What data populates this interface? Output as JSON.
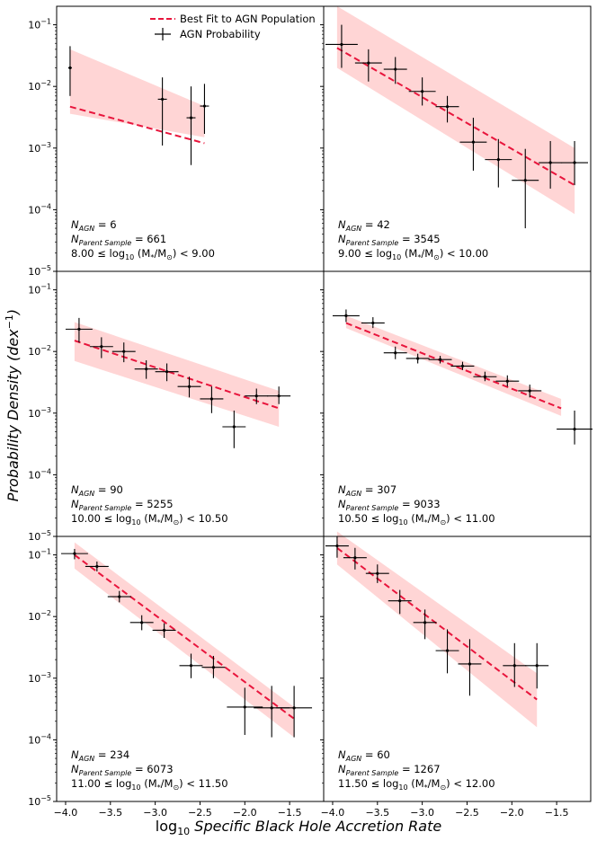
{
  "colors": {
    "fit": "#e8153c",
    "band": "#ffb3b3",
    "points": "#000000",
    "frame": "#000000"
  },
  "labels": {
    "xlabel_prefix": "log",
    "xlabel_sub": "10",
    "xlabel_rest": "Specific Black Hole Accretion Rate",
    "ylabel": "Probability Density (dex",
    "ylabel_exp": "−1",
    "ylabel_close": ")"
  },
  "legend": {
    "fit": "Best Fit to AGN Population",
    "points": "AGN Probability"
  },
  "chart_data": [
    {
      "type": "scatter",
      "xlim": [
        -4.1,
        -1.12
      ],
      "ylim_exp": [
        -5,
        -0.7
      ],
      "n_agn": "6",
      "n_parent": "661",
      "mass_lo": "8.00",
      "mass_hi": "9.00",
      "points": [
        {
          "x": -3.95,
          "y": 0.02,
          "yerr": [
            0.007,
            0.045
          ],
          "xerr": 0.02
        },
        {
          "x": -2.92,
          "y": 0.0062,
          "yerr": [
            0.0011,
            0.014
          ],
          "xerr": 0.05
        },
        {
          "x": -2.6,
          "y": 0.0031,
          "yerr": [
            0.00053,
            0.01
          ],
          "xerr": 0.05
        },
        {
          "x": -2.45,
          "y": 0.0048,
          "yerr": [
            0.0017,
            0.011
          ],
          "xerr": 0.05
        }
      ],
      "fit": {
        "x": [
          -3.95,
          -2.45
        ],
        "y": [
          0.0047,
          0.0012
        ]
      },
      "band": {
        "x": [
          -3.95,
          -2.45
        ],
        "lo": [
          0.0036,
          0.0015
        ],
        "hi": [
          0.04,
          0.0048
        ]
      }
    },
    {
      "type": "scatter",
      "xlim": [
        -4.1,
        -1.12
      ],
      "ylim_exp": [
        -5,
        -0.7
      ],
      "n_agn": "42",
      "n_parent": "3545",
      "mass_lo": "9.00",
      "mass_hi": "10.00",
      "points": [
        {
          "x": -3.9,
          "y": 0.048,
          "yerr": [
            0.02,
            0.1
          ],
          "xerr": 0.18
        },
        {
          "x": -3.6,
          "y": 0.024,
          "yerr": [
            0.012,
            0.04
          ],
          "xerr": 0.15
        },
        {
          "x": -3.3,
          "y": 0.019,
          "yerr": [
            0.011,
            0.03
          ],
          "xerr": 0.13
        },
        {
          "x": -3.0,
          "y": 0.0083,
          "yerr": [
            0.0049,
            0.014
          ],
          "xerr": 0.15
        },
        {
          "x": -2.72,
          "y": 0.0047,
          "yerr": [
            0.0026,
            0.007
          ],
          "xerr": 0.13
        },
        {
          "x": -2.43,
          "y": 0.00125,
          "yerr": [
            0.00043,
            0.0031
          ],
          "xerr": 0.15
        },
        {
          "x": -2.15,
          "y": 0.00065,
          "yerr": [
            0.00023,
            0.0014
          ],
          "xerr": 0.15
        },
        {
          "x": -1.85,
          "y": 0.0003,
          "yerr": [
            5e-05,
            0.00097
          ],
          "xerr": 0.15
        },
        {
          "x": -1.57,
          "y": 0.00058,
          "yerr": [
            0.00022,
            0.0013
          ],
          "xerr": 0.13
        },
        {
          "x": -1.3,
          "y": 0.00058,
          "yerr": [
            0.00025,
            0.0013
          ],
          "xerr": 0.15
        }
      ],
      "fit": {
        "x": [
          -3.95,
          -1.3
        ],
        "y": [
          0.042,
          0.00025
        ]
      },
      "band": {
        "x": [
          -3.95,
          -1.3
        ],
        "lo": [
          0.02,
          8.5e-05
        ],
        "hi": [
          0.2,
          0.001
        ]
      }
    },
    {
      "type": "scatter",
      "xlim": [
        -4.1,
        -1.12
      ],
      "ylim_exp": [
        -5,
        -0.7
      ],
      "n_agn": "90",
      "n_parent": "5255",
      "mass_lo": "10.00",
      "mass_hi": "10.50",
      "points": [
        {
          "x": -3.85,
          "y": 0.023,
          "yerr": [
            0.014,
            0.035
          ],
          "xerr": 0.15
        },
        {
          "x": -3.6,
          "y": 0.012,
          "yerr": [
            0.0078,
            0.017
          ],
          "xerr": 0.13
        },
        {
          "x": -3.35,
          "y": 0.01,
          "yerr": [
            0.0067,
            0.014
          ],
          "xerr": 0.13
        },
        {
          "x": -3.1,
          "y": 0.0052,
          "yerr": [
            0.0036,
            0.0072
          ],
          "xerr": 0.13
        },
        {
          "x": -2.87,
          "y": 0.0047,
          "yerr": [
            0.0033,
            0.0064
          ],
          "xerr": 0.13
        },
        {
          "x": -2.62,
          "y": 0.0027,
          "yerr": [
            0.0018,
            0.0039
          ],
          "xerr": 0.13
        },
        {
          "x": -2.37,
          "y": 0.0017,
          "yerr": [
            0.001,
            0.0027
          ],
          "xerr": 0.13
        },
        {
          "x": -2.12,
          "y": 0.0006,
          "yerr": [
            0.00027,
            0.0011
          ],
          "xerr": 0.13
        },
        {
          "x": -1.87,
          "y": 0.0019,
          "yerr": [
            0.0014,
            0.0025
          ],
          "xerr": 0.13
        },
        {
          "x": -1.62,
          "y": 0.0019,
          "yerr": [
            0.0014,
            0.0027
          ],
          "xerr": 0.13
        }
      ],
      "fit": {
        "x": [
          -3.9,
          -1.62
        ],
        "y": [
          0.015,
          0.0012
        ]
      },
      "band": {
        "x": [
          -3.9,
          -1.62
        ],
        "lo": [
          0.007,
          0.0006
        ],
        "hi": [
          0.03,
          0.0023
        ]
      }
    },
    {
      "type": "scatter",
      "xlim": [
        -4.1,
        -1.12
      ],
      "ylim_exp": [
        -5,
        -0.7
      ],
      "n_agn": "307",
      "n_parent": "9033",
      "mass_lo": "10.50",
      "mass_hi": "11.00",
      "points": [
        {
          "x": -3.85,
          "y": 0.038,
          "yerr": [
            0.03,
            0.048
          ],
          "xerr": 0.15
        },
        {
          "x": -3.55,
          "y": 0.029,
          "yerr": [
            0.024,
            0.036
          ],
          "xerr": 0.13
        },
        {
          "x": -3.3,
          "y": 0.0095,
          "yerr": [
            0.0075,
            0.012
          ],
          "xerr": 0.13
        },
        {
          "x": -3.05,
          "y": 0.0077,
          "yerr": [
            0.0064,
            0.0092
          ],
          "xerr": 0.13
        },
        {
          "x": -2.8,
          "y": 0.0074,
          "yerr": [
            0.0064,
            0.0085
          ],
          "xerr": 0.13
        },
        {
          "x": -2.55,
          "y": 0.0058,
          "yerr": [
            0.005,
            0.0068
          ],
          "xerr": 0.13
        },
        {
          "x": -2.3,
          "y": 0.0039,
          "yerr": [
            0.0033,
            0.0047
          ],
          "xerr": 0.13
        },
        {
          "x": -2.05,
          "y": 0.0033,
          "yerr": [
            0.0027,
            0.0041
          ],
          "xerr": 0.13
        },
        {
          "x": -1.8,
          "y": 0.0023,
          "yerr": [
            0.0018,
            0.0029
          ],
          "xerr": 0.13
        },
        {
          "x": -1.3,
          "y": 0.00055,
          "yerr": [
            0.00031,
            0.0011
          ],
          "xerr": 0.2
        }
      ],
      "fit": {
        "x": [
          -3.85,
          -1.45
        ],
        "y": [
          0.029,
          0.0012
        ]
      },
      "band": {
        "x": [
          -3.85,
          -1.45
        ],
        "lo": [
          0.024,
          0.0009
        ],
        "hi": [
          0.038,
          0.0017
        ]
      }
    },
    {
      "type": "scatter",
      "xlim": [
        -4.1,
        -1.12
      ],
      "ylim_exp": [
        -5,
        -0.7
      ],
      "n_agn": "234",
      "n_parent": "6073",
      "mass_lo": "11.00",
      "mass_hi": "11.50",
      "points": [
        {
          "x": -3.9,
          "y": 0.105,
          "yerr": [
            0.085,
            0.125
          ],
          "xerr": 0.15
        },
        {
          "x": -3.65,
          "y": 0.065,
          "yerr": [
            0.054,
            0.078
          ],
          "xerr": 0.13
        },
        {
          "x": -3.4,
          "y": 0.021,
          "yerr": [
            0.017,
            0.026
          ],
          "xerr": 0.13
        },
        {
          "x": -3.15,
          "y": 0.008,
          "yerr": [
            0.006,
            0.0105
          ],
          "xerr": 0.13
        },
        {
          "x": -2.9,
          "y": 0.006,
          "yerr": [
            0.0045,
            0.0078
          ],
          "xerr": 0.13
        },
        {
          "x": -2.6,
          "y": 0.0016,
          "yerr": [
            0.001,
            0.0025
          ],
          "xerr": 0.13
        },
        {
          "x": -2.35,
          "y": 0.0015,
          "yerr": [
            0.001,
            0.0023
          ],
          "xerr": 0.13
        },
        {
          "x": -2.0,
          "y": 0.00034,
          "yerr": [
            0.00012,
            0.0007
          ],
          "xerr": 0.2
        },
        {
          "x": -1.7,
          "y": 0.00033,
          "yerr": [
            0.00011,
            0.00075
          ],
          "xerr": 0.2
        },
        {
          "x": -1.45,
          "y": 0.00033,
          "yerr": [
            0.00011,
            0.00075
          ],
          "xerr": 0.2
        }
      ],
      "fit": {
        "x": [
          -3.9,
          -1.45
        ],
        "y": [
          0.1,
          0.00022
        ]
      },
      "band": {
        "x": [
          -3.9,
          -1.45
        ],
        "lo": [
          0.06,
          0.00011
        ],
        "hi": [
          0.16,
          0.00034
        ]
      }
    },
    {
      "type": "scatter",
      "xlim": [
        -4.1,
        -1.12
      ],
      "ylim_exp": [
        -5,
        -0.7
      ],
      "n_agn": "60",
      "n_parent": "1267",
      "mass_lo": "11.50",
      "mass_hi": "12.00",
      "points": [
        {
          "x": -3.95,
          "y": 0.14,
          "yerr": [
            0.09,
            0.2
          ],
          "xerr": 0.13
        },
        {
          "x": -3.75,
          "y": 0.09,
          "yerr": [
            0.058,
            0.13
          ],
          "xerr": 0.13
        },
        {
          "x": -3.5,
          "y": 0.05,
          "yerr": [
            0.035,
            0.07
          ],
          "xerr": 0.13
        },
        {
          "x": -3.25,
          "y": 0.018,
          "yerr": [
            0.011,
            0.027
          ],
          "xerr": 0.13
        },
        {
          "x": -2.97,
          "y": 0.008,
          "yerr": [
            0.0043,
            0.013
          ],
          "xerr": 0.13
        },
        {
          "x": -2.72,
          "y": 0.0028,
          "yerr": [
            0.0012,
            0.0062
          ],
          "xerr": 0.13
        },
        {
          "x": -2.47,
          "y": 0.0017,
          "yerr": [
            0.00052,
            0.0043
          ],
          "xerr": 0.13
        },
        {
          "x": -1.97,
          "y": 0.0016,
          "yerr": [
            0.00072,
            0.0037
          ],
          "xerr": 0.13
        },
        {
          "x": -1.72,
          "y": 0.0016,
          "yerr": [
            0.00068,
            0.0037
          ],
          "xerr": 0.13
        }
      ],
      "fit": {
        "x": [
          -3.95,
          -1.72
        ],
        "y": [
          0.13,
          0.00045
        ]
      },
      "band": {
        "x": [
          -3.95,
          -1.72
        ],
        "lo": [
          0.07,
          0.00016
        ],
        "hi": [
          0.24,
          0.0012
        ]
      }
    }
  ]
}
